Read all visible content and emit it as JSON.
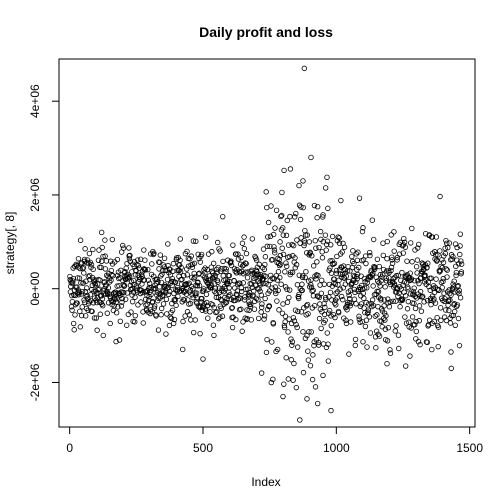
{
  "chart_data": {
    "type": "scatter",
    "title": "Daily profit and loss",
    "xlabel": "Index",
    "ylabel": "strategy[, 8]",
    "xlim": [
      -40,
      1520
    ],
    "ylim": [
      -2950000,
      4900000
    ],
    "x_ticks": [
      {
        "value": 0,
        "label": "0"
      },
      {
        "value": 500,
        "label": "500"
      },
      {
        "value": 1000,
        "label": "1000"
      },
      {
        "value": 1500,
        "label": "1500"
      }
    ],
    "y_ticks": [
      {
        "value": -2000000,
        "label": "-2e+06"
      },
      {
        "value": 0,
        "label": "0e+00"
      },
      {
        "value": 2000000,
        "label": "2e+06"
      },
      {
        "value": 4000000,
        "label": "4e+06"
      }
    ],
    "n_points": 1470,
    "grid": false,
    "legend": "none",
    "regimes": [
      {
        "from": 1,
        "to": 730,
        "sd": 420000
      },
      {
        "from": 730,
        "to": 980,
        "sd": 1000000
      },
      {
        "from": 980,
        "to": 1470,
        "sd": 560000
      }
    ],
    "notable_points": [
      {
        "x": 880,
        "y": 4700000
      },
      {
        "x": 905,
        "y": 2800000
      },
      {
        "x": 960,
        "y": 2150000
      },
      {
        "x": 875,
        "y": 2300000
      },
      {
        "x": 860,
        "y": 2200000
      },
      {
        "x": 1100,
        "y": 1300000
      },
      {
        "x": 510,
        "y": 1100000
      },
      {
        "x": 120,
        "y": 1200000
      },
      {
        "x": 980,
        "y": -2600000
      },
      {
        "x": 890,
        "y": -2350000
      },
      {
        "x": 930,
        "y": -2450000
      },
      {
        "x": 800,
        "y": -2300000
      },
      {
        "x": 950,
        "y": -1850000
      },
      {
        "x": 720,
        "y": -1800000
      },
      {
        "x": 1190,
        "y": -1600000
      },
      {
        "x": 1260,
        "y": -1650000
      },
      {
        "x": 500,
        "y": -1500000
      },
      {
        "x": 1430,
        "y": -1350000
      }
    ]
  }
}
